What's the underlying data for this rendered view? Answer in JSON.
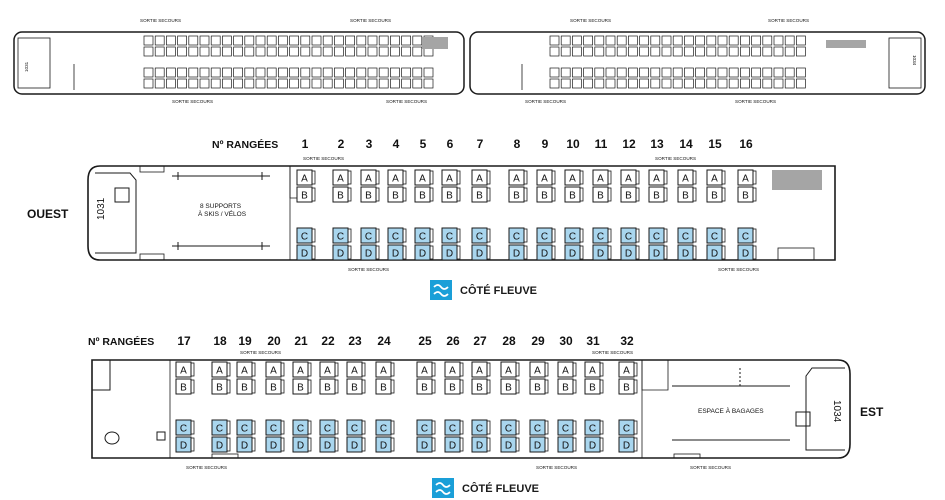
{
  "overview": {
    "labels_top": [
      "SORTIE SECOURS",
      "SORTIE SECOURS",
      "SORTIE SECOURS",
      "SORTIE SECOURS"
    ],
    "labels_bottom": [
      "SORTIE SECOURS",
      "SORTIE SECOURS",
      "SORTIE SECOURS",
      "SORTIE SECOURS"
    ],
    "car_left": "1031",
    "car_right": "1034"
  },
  "car1": {
    "rows_header": "Nº RANGÉES",
    "side_label": "OUEST",
    "car_number": "1031",
    "bike_label": [
      "8 SUPPORTS",
      "À SKIS / VÉLOS"
    ],
    "exit_top": "SORTIE SECOURS",
    "exit_bottom": [
      "SORTIE SECOURS",
      "SORTIE SECOURS"
    ],
    "rows": [
      "1",
      "2",
      "3",
      "4",
      "5",
      "6",
      "7",
      "8",
      "9",
      "10",
      "11",
      "12",
      "13",
      "14",
      "15",
      "16"
    ],
    "fleuve_label": "CÔTÉ FLEUVE"
  },
  "car2": {
    "rows_header": "Nº RANGÉES",
    "side_label": "EST",
    "car_number": "1034",
    "luggage_label": "ESPACE À BAGAGES",
    "exit_top": [
      "SORTIE SECOURS",
      "SORTIE SECOURS"
    ],
    "exit_bottom": [
      "SORTIE SECOURS",
      "SORTIE SECOURS",
      "SORTIE SECOURS"
    ],
    "rows": [
      "17",
      "18",
      "19",
      "20",
      "21",
      "22",
      "23",
      "24",
      "25",
      "26",
      "27",
      "28",
      "29",
      "30",
      "31",
      "32"
    ],
    "fleuve_label": "CÔTÉ FLEUVE"
  },
  "seat_letters": {
    "a": "A",
    "b": "B",
    "c": "C",
    "d": "D"
  },
  "colors": {
    "fleuve_seat": "#a9d6ee",
    "fleuve_icon": "#1a9fd8",
    "outline": "#1a1a1a",
    "gray_block": "#a5a5a5"
  },
  "icons": [
    "wave-icon",
    "toilet-icon",
    "bike-rack-icon",
    "seat-icon"
  ]
}
